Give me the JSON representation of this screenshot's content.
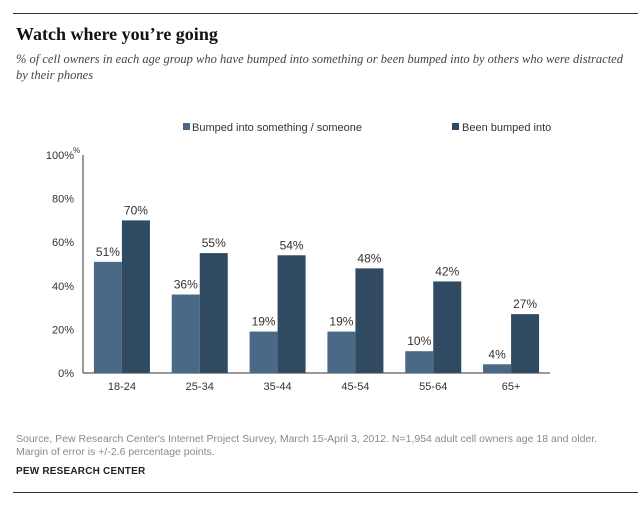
{
  "header": {
    "title": "Watch where you’re going",
    "subtitle": "% of cell owners in each age group who have bumped into something or been bumped into by others who were distracted by their phones"
  },
  "footer": {
    "source": "Source, Pew Research Center's Internet Project Survey, March 15-April 3, 2012. N=1,954 adult cell owners age 18 and older. Margin of error is +/-2.6 percentage points.",
    "credit": "PEW RESEARCH CENTER"
  },
  "chart_data": {
    "type": "bar",
    "title": "",
    "xlabel": "",
    "ylabel": "",
    "ylim": [
      0,
      100
    ],
    "y_ticks": [
      0,
      20,
      40,
      60,
      80,
      100
    ],
    "y_tick_labels": [
      "0%",
      "20%",
      "40%",
      "60%",
      "80%",
      "100%"
    ],
    "y_unit_marker": "%",
    "grid": false,
    "legend": "top",
    "categories": [
      "18-24",
      "25-34",
      "35-44",
      "45-54",
      "55-64",
      "65+"
    ],
    "series": [
      {
        "name": "Bumped into something / someone",
        "color": "#4a6986",
        "values": [
          51,
          36,
          19,
          19,
          10,
          4
        ],
        "labels": [
          "51%",
          "36%",
          "19%",
          "19%",
          "10%",
          "4%"
        ]
      },
      {
        "name": "Been bumped into",
        "color": "#2f4a61",
        "values": [
          70,
          55,
          54,
          48,
          42,
          27
        ],
        "labels": [
          "70%",
          "55%",
          "54%",
          "48%",
          "42%",
          "27%"
        ]
      }
    ]
  }
}
